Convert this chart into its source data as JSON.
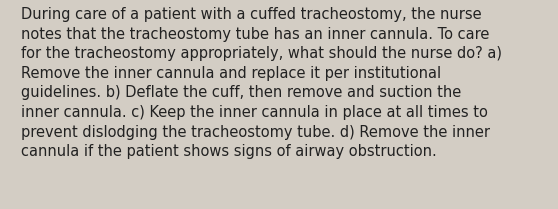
{
  "lines": [
    "During care of a patient with a cuffed tracheostomy, the nurse",
    "notes that the tracheostomy tube has an inner cannula. To care",
    "for the tracheostomy appropriately, what should the nurse do? a)",
    "Remove the inner cannula and replace it per institutional",
    "guidelines. b) Deflate the cuff, then remove and suction the",
    "inner cannula. c) Keep the inner cannula in place at all times to",
    "prevent dislodging the tracheostomy tube. d) Remove the inner",
    "cannula if the patient shows signs of airway obstruction."
  ],
  "background_color": "#d3cdc4",
  "text_color": "#222222",
  "font_size": 10.5,
  "font_family": "DejaVu Sans",
  "fig_width": 5.58,
  "fig_height": 2.09,
  "dpi": 100
}
